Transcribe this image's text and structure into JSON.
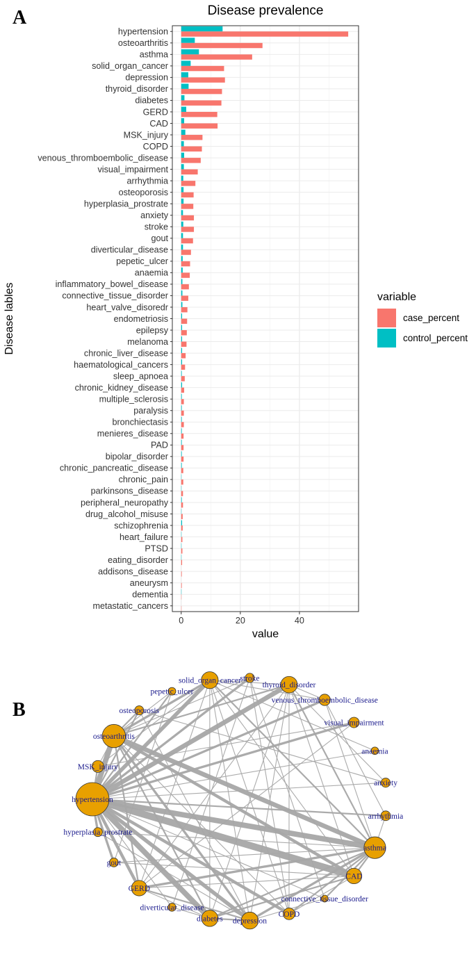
{
  "panel_a_letter": "A",
  "panel_b_letter": "B",
  "chart_data": [
    {
      "type": "bar",
      "orientation": "horizontal",
      "title": "Disease prevalence",
      "xlabel": "value",
      "ylabel": "Disease lables",
      "xlim": [
        -3,
        60
      ],
      "xticks": [
        0,
        20,
        40
      ],
      "grid": true,
      "legend": {
        "title": "variable",
        "position": "right"
      },
      "categories": [
        "hypertension",
        "osteoarthritis",
        "asthma",
        "solid_organ_cancer",
        "depression",
        "thyroid_disorder",
        "diabetes",
        "GERD",
        "CAD",
        "MSK_injury",
        "COPD",
        "venous_thromboembolic_disease",
        "visual_impairment",
        "arrhythmia",
        "osteoporosis",
        "hyperplasia_prostrate",
        "anxiety",
        "stroke",
        "gout",
        "diverticular_disease",
        "pepetic_ulcer",
        "anaemia",
        "inflammatory_bowel_disease",
        "connective_tissue_disorder",
        "heart_valve_disoredr",
        "endometriosis",
        "epilepsy",
        "melanoma",
        "chronic_liver_disease",
        "haematological_cancers",
        "sleep_apnoea",
        "chronic_kidney_disease",
        "multiple_sclerosis",
        "paralysis",
        "bronchiectasis",
        "menieres_disease",
        "PAD",
        "bipolar_disorder",
        "chronic_pancreatic_disease",
        "chronic_pain",
        "parkinsons_disease",
        "peripheral_neuropathy",
        "drug_alcohol_misuse",
        "schizophrenia",
        "heart_failure",
        "PTSD",
        "eating_disorder",
        "addisons_disease",
        "aneurysm",
        "dementia",
        "metastatic_cancers"
      ],
      "series": [
        {
          "name": "case_percent",
          "color": "#F8766D",
          "values": [
            56.5,
            27.5,
            24,
            14.5,
            14.8,
            13.8,
            13.6,
            12.2,
            12.3,
            7.2,
            7,
            6.6,
            5.6,
            4.8,
            4.2,
            4.1,
            4.3,
            4.3,
            4.0,
            3.3,
            3.0,
            2.9,
            2.6,
            2.4,
            2.1,
            2.0,
            1.9,
            1.8,
            1.5,
            1.3,
            1.2,
            1.0,
            0.9,
            0.9,
            0.9,
            0.8,
            0.8,
            0.8,
            0.7,
            0.7,
            0.6,
            0.6,
            0.5,
            0.5,
            0.4,
            0.4,
            0.3,
            0.2,
            0.2,
            0.1,
            0.1
          ]
        },
        {
          "name": "control_percent",
          "color": "#00BFC4",
          "values": [
            14,
            4.6,
            6,
            3.2,
            2.4,
            2.5,
            1.1,
            1.7,
            1.0,
            1.4,
            0.9,
            1.0,
            0.9,
            0.7,
            0.8,
            0.8,
            0.6,
            0.7,
            0.6,
            0.6,
            0.5,
            0.5,
            0.4,
            0.4,
            0.4,
            0.3,
            0.3,
            0.3,
            0.3,
            0.3,
            0.2,
            0.3,
            0.2,
            0.2,
            0.2,
            0.2,
            0.2,
            0.2,
            0.2,
            0.1,
            0.1,
            0.2,
            0.1,
            0.3,
            0.1,
            0.1,
            0.1,
            0.0,
            0.0,
            0.1,
            0.0
          ]
        }
      ]
    },
    {
      "type": "network",
      "node_color": "#E8A000",
      "nodes": [
        {
          "id": "hypertension",
          "label": "hypertension",
          "size": 56.5
        },
        {
          "id": "osteoarthritis",
          "label": "osteoarthritis",
          "size": 27.5
        },
        {
          "id": "asthma",
          "label": "asthma",
          "size": 24
        },
        {
          "id": "solid_organ_cancer",
          "label": "solid_organ_cancer",
          "size": 14.5
        },
        {
          "id": "depression",
          "label": "depression",
          "size": 14.8
        },
        {
          "id": "thyroid_disorder",
          "label": "thyroid_disorder",
          "size": 13.8
        },
        {
          "id": "diabetes",
          "label": "diabetes",
          "size": 13.6
        },
        {
          "id": "GERD",
          "label": "GERD",
          "size": 12.2
        },
        {
          "id": "CAD",
          "label": "CAD",
          "size": 12.3
        },
        {
          "id": "MSK_injury",
          "label": "MSK_injury",
          "size": 7.2
        },
        {
          "id": "COPD",
          "label": "COPD",
          "size": 7
        },
        {
          "id": "venous_thromboembolic_disease",
          "label": "venous_thromboembolic_disease",
          "size": 6.6
        },
        {
          "id": "visual_impairment",
          "label": "visual_impairment",
          "size": 5.6
        },
        {
          "id": "arrhythmia",
          "label": "arrhythmia",
          "size": 4.8
        },
        {
          "id": "osteoporosis",
          "label": "osteoporosis",
          "size": 4.2
        },
        {
          "id": "hyperplasia_prostrate",
          "label": "hyperplasia_prostrate",
          "size": 4.1
        },
        {
          "id": "anxiety",
          "label": "anxiety",
          "size": 4.3
        },
        {
          "id": "stroke",
          "label": "stroke",
          "size": 4.3
        },
        {
          "id": "gout",
          "label": "gout",
          "size": 4.0
        },
        {
          "id": "diverticular_disease",
          "label": "diverticular_disease",
          "size": 3.3
        },
        {
          "id": "pepetic_ulcer",
          "label": "pepetic_ulcer",
          "size": 3.0
        },
        {
          "id": "anaemia",
          "label": "anaemia",
          "size": 2.9
        },
        {
          "id": "connective_tissue_disorder",
          "label": "connective_tissue_disorder",
          "size": 2.4
        }
      ],
      "edges": [
        [
          "hypertension",
          "CAD",
          9
        ],
        [
          "hypertension",
          "asthma",
          7
        ],
        [
          "hypertension",
          "diabetes",
          7
        ],
        [
          "hypertension",
          "osteoarthritis",
          7
        ],
        [
          "hypertension",
          "thyroid_disorder",
          6
        ],
        [
          "hypertension",
          "depression",
          5
        ],
        [
          "hypertension",
          "solid_organ_cancer",
          5
        ],
        [
          "hypertension",
          "COPD",
          4
        ],
        [
          "hypertension",
          "GERD",
          4
        ],
        [
          "hypertension",
          "stroke",
          3
        ],
        [
          "hypertension",
          "venous_thromboembolic_disease",
          3
        ],
        [
          "hypertension",
          "visual_impairment",
          3
        ],
        [
          "hypertension",
          "MSK_injury",
          2
        ],
        [
          "hypertension",
          "gout",
          3
        ],
        [
          "hypertension",
          "hyperplasia_prostrate",
          3
        ],
        [
          "hypertension",
          "arrhythmia",
          2
        ],
        [
          "hypertension",
          "anxiety",
          1
        ],
        [
          "hypertension",
          "anaemia",
          1
        ],
        [
          "hypertension",
          "pepetic_ulcer",
          2
        ],
        [
          "hypertension",
          "osteoporosis",
          2
        ],
        [
          "hypertension",
          "diverticular_disease",
          1
        ],
        [
          "hypertension",
          "connective_tissue_disorder",
          1
        ],
        [
          "osteoarthritis",
          "asthma",
          6
        ],
        [
          "osteoarthritis",
          "CAD",
          4
        ],
        [
          "osteoarthritis",
          "depression",
          3
        ],
        [
          "osteoarthritis",
          "solid_organ_cancer",
          3
        ],
        [
          "osteoarthritis",
          "thyroid_disorder",
          2
        ],
        [
          "osteoarthritis",
          "GERD",
          2
        ],
        [
          "osteoarthritis",
          "diabetes",
          2
        ],
        [
          "osteoarthritis",
          "MSK_injury",
          1
        ],
        [
          "osteoarthritis",
          "stroke",
          1
        ],
        [
          "osteoarthritis",
          "COPD",
          1
        ],
        [
          "osteoarthritis",
          "osteoporosis",
          2
        ],
        [
          "osteoarthritis",
          "pepetic_ulcer",
          1
        ],
        [
          "asthma",
          "depression",
          3
        ],
        [
          "asthma",
          "CAD",
          2
        ],
        [
          "asthma",
          "GERD",
          3
        ],
        [
          "asthma",
          "solid_organ_cancer",
          2
        ],
        [
          "asthma",
          "thyroid_disorder",
          2
        ],
        [
          "asthma",
          "diabetes",
          2
        ],
        [
          "asthma",
          "COPD",
          2
        ],
        [
          "asthma",
          "hyperplasia_prostrate",
          1
        ],
        [
          "asthma",
          "connective_tissue_disorder",
          2
        ],
        [
          "asthma",
          "arrhythmia",
          1
        ],
        [
          "asthma",
          "venous_thromboembolic_disease",
          1
        ],
        [
          "asthma",
          "gout",
          1
        ],
        [
          "depression",
          "diabetes",
          2
        ],
        [
          "depression",
          "thyroid_disorder",
          1
        ],
        [
          "depression",
          "GERD",
          2
        ],
        [
          "depression",
          "connective_tissue_disorder",
          1
        ],
        [
          "depression",
          "solid_organ_cancer",
          1
        ],
        [
          "depression",
          "osteoporosis",
          1
        ],
        [
          "depression",
          "hyperplasia_prostrate",
          1
        ],
        [
          "CAD",
          "diabetes",
          2
        ],
        [
          "CAD",
          "GERD",
          1
        ],
        [
          "CAD",
          "COPD",
          1
        ],
        [
          "CAD",
          "thyroid_disorder",
          1
        ],
        [
          "CAD",
          "solid_organ_cancer",
          1
        ],
        [
          "CAD",
          "gout",
          1
        ],
        [
          "diabetes",
          "thyroid_disorder",
          1
        ],
        [
          "diabetes",
          "solid_organ_cancer",
          1
        ],
        [
          "diabetes",
          "diverticular_disease",
          1
        ],
        [
          "diabetes",
          "GERD",
          1
        ],
        [
          "GERD",
          "solid_organ_cancer",
          1
        ],
        [
          "GERD",
          "visual_impairment",
          1
        ],
        [
          "GERD",
          "thyroid_disorder",
          1
        ],
        [
          "COPD",
          "thyroid_disorder",
          1
        ],
        [
          "COPD",
          "solid_organ_cancer",
          1
        ],
        [
          "COPD",
          "stroke",
          1
        ],
        [
          "thyroid_disorder",
          "solid_organ_cancer",
          1
        ],
        [
          "thyroid_disorder",
          "venous_thromboembolic_disease",
          1
        ],
        [
          "thyroid_disorder",
          "anxiety",
          1
        ],
        [
          "solid_organ_cancer",
          "venous_thromboembolic_disease",
          1
        ],
        [
          "solid_organ_cancer",
          "MSK_injury",
          1
        ],
        [
          "solid_organ_cancer",
          "anaemia",
          1
        ],
        [
          "arrhythmia",
          "venous_thromboembolic_disease",
          1
        ],
        [
          "connective_tissue_disorder",
          "stroke",
          1
        ],
        [
          "diverticular_disease",
          "stroke",
          1
        ],
        [
          "gout",
          "pepetic_ulcer",
          1
        ],
        [
          "visual_impairment",
          "MSK_injury",
          1
        ],
        [
          "anxiety",
          "osteoporosis",
          1
        ]
      ]
    }
  ]
}
